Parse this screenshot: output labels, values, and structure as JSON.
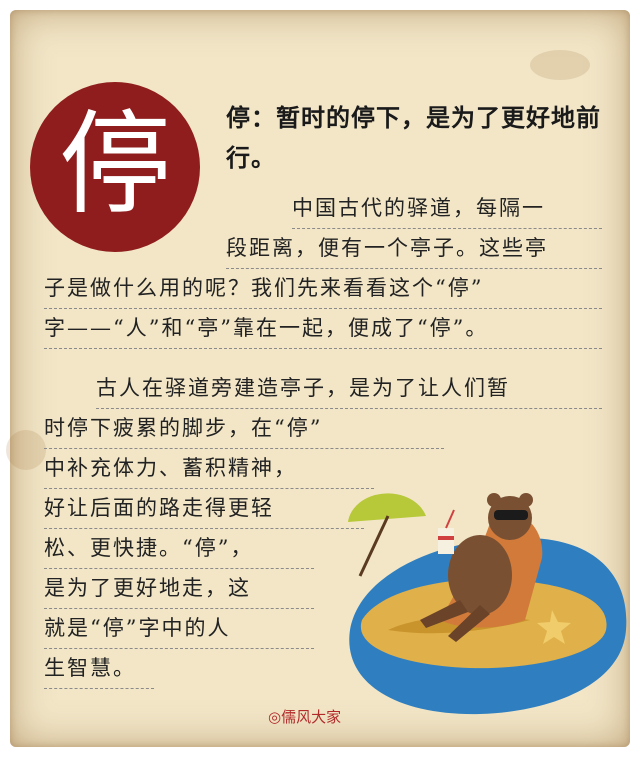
{
  "character": "停",
  "heading": "停：暂时的停下，是为了更好地前行。",
  "paragraph1": [
    "中国古代的驿道，每隔一",
    "段距离，便有一个亭子。这些亭",
    "子是做什么用的呢？我们先来看看这个“停”",
    "字——“人”和“亭”靠在一起，便成了“停”。"
  ],
  "paragraph2": [
    "古人在驿道旁建造亭子，是为了让人们暂",
    "时停下疲累的脚步，在“停”",
    "中补充体力、蓄积精神，",
    "好让后面的路走得更轻",
    "松、更快捷。“停”，",
    "是为了更好地走，这",
    "就是“停”字中的人",
    "生智慧。"
  ],
  "credit": "◎儒风大家",
  "colors": {
    "seal": "#8f1d1d",
    "paper": "#f2e6c7",
    "sea": "#2f7fc0",
    "sand": "#e0b04a",
    "umbrella": "#b7c838"
  }
}
